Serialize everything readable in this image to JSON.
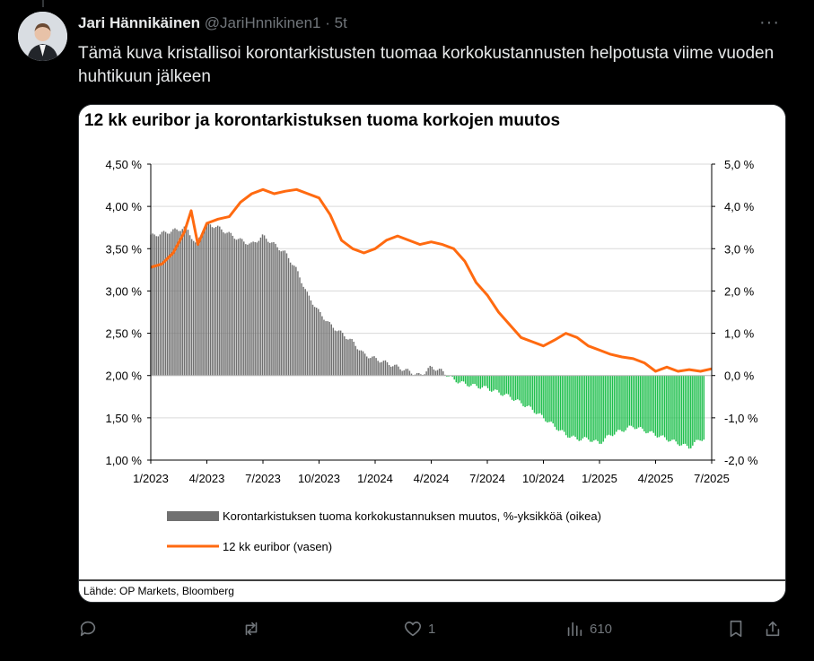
{
  "tweet": {
    "author_name": "Jari Hännikäinen",
    "handle": "@JariHnnikinen1",
    "separator": "·",
    "time": "5t",
    "text": "Tämä kuva kristallisoi korontarkistusten tuomaa korkokustannusten helpotusta viime vuoden huhtikuun jälkeen"
  },
  "actions": {
    "reply_count": "",
    "retweet_count": "",
    "like_count": "1",
    "views_count": "610"
  },
  "chart_data": {
    "type": "area",
    "title": "12 kk euribor ja korontarkistuksen tuoma korkojen muutos",
    "source": "Lähde: OP Markets, Bloomberg",
    "x_tick_labels": [
      "1/2023",
      "4/2023",
      "7/2023",
      "10/2023",
      "1/2024",
      "4/2024",
      "7/2024",
      "10/2024",
      "1/2025",
      "4/2025",
      "7/2025"
    ],
    "left_axis": {
      "ticks": [
        "4,50 %",
        "4,00 %",
        "3,50 %",
        "3,00 %",
        "2,50 %",
        "2,00 %",
        "1,50 %",
        "1,00 %"
      ],
      "ylim": [
        1.0,
        4.5
      ]
    },
    "right_axis": {
      "ticks": [
        "5,0 %",
        "4,0 %",
        "3,0 %",
        "2,0 %",
        "1,0 %",
        "0,0 %",
        "-1,0 %",
        "-2,0 %"
      ],
      "ylim": [
        -2.0,
        5.0
      ]
    },
    "grid": true,
    "legend_position": "bottom",
    "series": [
      {
        "name": "Korontarkistuksen tuoma korkokustannuksen muutos, %-yksikköä (oikea)",
        "axis": "right",
        "style": "bars",
        "color_positive": "#707070",
        "color_negative": "#1fbf4d",
        "x": [
          2023.0,
          2023.08,
          2023.16,
          2023.2,
          2023.25,
          2023.3,
          2023.4,
          2023.45,
          2023.5,
          2023.55,
          2023.6,
          2023.65,
          2023.7,
          2023.75,
          2023.8,
          2023.85,
          2023.9,
          2023.95,
          2024.0,
          2024.05,
          2024.1,
          2024.15,
          2024.2,
          2024.25,
          2024.3,
          2024.35,
          2024.4,
          2024.5,
          2024.6,
          2024.7,
          2024.75,
          2024.8,
          2024.85,
          2024.9,
          2024.95,
          2025.0,
          2025.05,
          2025.1,
          2025.15,
          2025.2,
          2025.25,
          2025.3,
          2025.35,
          2025.4,
          2025.45
        ],
        "values": [
          3.3,
          3.4,
          3.5,
          3.1,
          3.6,
          3.5,
          3.2,
          3.1,
          3.3,
          3.1,
          2.9,
          2.5,
          1.9,
          1.5,
          1.2,
          1.0,
          0.8,
          0.5,
          0.4,
          0.3,
          0.2,
          0.1,
          0.0,
          0.2,
          0.1,
          -0.1,
          -0.2,
          -0.3,
          -0.5,
          -0.8,
          -1.0,
          -1.2,
          -1.4,
          -1.5,
          -1.5,
          -1.6,
          -1.4,
          -1.3,
          -1.2,
          -1.3,
          -1.4,
          -1.5,
          -1.6,
          -1.7,
          -1.5
        ]
      },
      {
        "name": "12 kk euribor (vasen)",
        "axis": "left",
        "style": "line",
        "color": "#ff6a10",
        "x": [
          2023.0,
          2023.05,
          2023.1,
          2023.15,
          2023.18,
          2023.21,
          2023.25,
          2023.3,
          2023.35,
          2023.4,
          2023.45,
          2023.5,
          2023.55,
          2023.6,
          2023.65,
          2023.7,
          2023.75,
          2023.8,
          2023.85,
          2023.9,
          2023.95,
          2024.0,
          2024.05,
          2024.1,
          2024.15,
          2024.2,
          2024.25,
          2024.3,
          2024.35,
          2024.4,
          2024.45,
          2024.5,
          2024.55,
          2024.6,
          2024.65,
          2024.7,
          2024.75,
          2024.8,
          2024.85,
          2024.9,
          2024.95,
          2025.0,
          2025.05,
          2025.1,
          2025.15,
          2025.2,
          2025.25,
          2025.3,
          2025.35,
          2025.4,
          2025.45,
          2025.5
        ],
        "values": [
          3.28,
          3.32,
          3.45,
          3.7,
          3.95,
          3.55,
          3.8,
          3.85,
          3.88,
          4.05,
          4.15,
          4.2,
          4.15,
          4.18,
          4.2,
          4.15,
          4.1,
          3.9,
          3.6,
          3.5,
          3.45,
          3.5,
          3.6,
          3.65,
          3.6,
          3.55,
          3.58,
          3.55,
          3.5,
          3.35,
          3.1,
          2.95,
          2.75,
          2.6,
          2.45,
          2.4,
          2.35,
          2.42,
          2.5,
          2.45,
          2.35,
          2.3,
          2.25,
          2.22,
          2.2,
          2.15,
          2.05,
          2.1,
          2.05,
          2.07,
          2.05,
          2.08
        ]
      }
    ]
  }
}
